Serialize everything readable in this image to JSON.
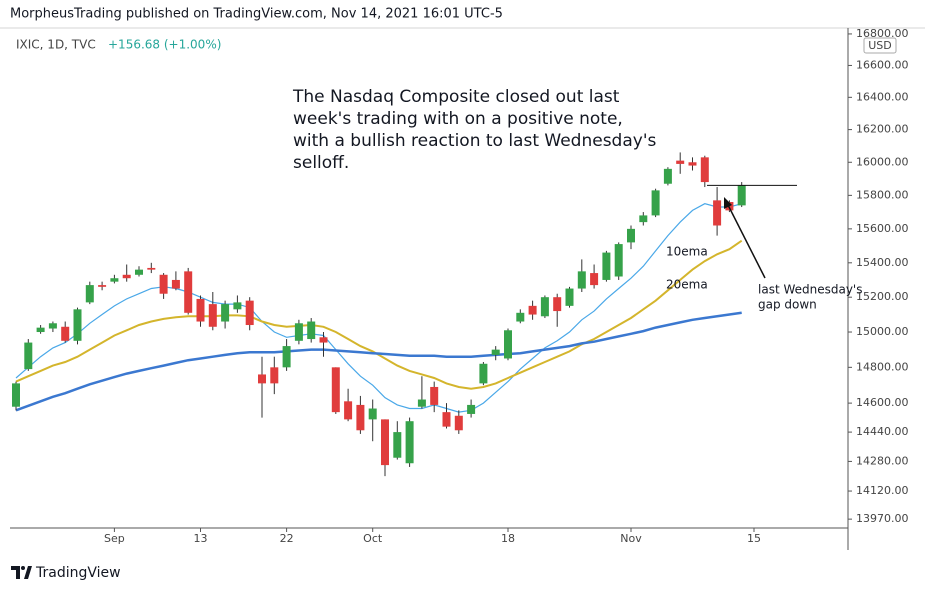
{
  "chart_data": {
    "type": "candlestick",
    "header": "MorpheusTrading published on TradingView.com, Nov 14, 2021 16:01 UTC-5",
    "symbol": "IXIC, 1D, TVC",
    "change": "+156.68 (+1.00%)",
    "currency": "USD",
    "brand": "TradingView",
    "categories": [
      null,
      null,
      null,
      null,
      null,
      null,
      null,
      null,
      "Sep",
      null,
      null,
      null,
      null,
      null,
      null,
      "13",
      null,
      null,
      null,
      null,
      null,
      null,
      "22",
      null,
      null,
      null,
      null,
      null,
      null,
      "Oct",
      null,
      null,
      null,
      null,
      null,
      null,
      null,
      null,
      null,
      null,
      "18",
      null,
      null,
      null,
      null,
      null,
      null,
      null,
      null,
      null,
      "Nov",
      null,
      null,
      null,
      null,
      null,
      null,
      null,
      null,
      null,
      "15"
    ],
    "open": [
      14580,
      14790,
      15000,
      15020,
      15030,
      14950,
      15170,
      15270,
      15290,
      15330,
      15330,
      15370,
      15330,
      15300,
      15350,
      15190,
      15160,
      15060,
      15130,
      15180,
      14760,
      14800,
      14800,
      14950,
      14960,
      14970,
      14800,
      14610,
      14590,
      14510,
      14510,
      14300,
      14270,
      14580,
      14690,
      14550,
      14530,
      14540,
      14710,
      14870,
      14850,
      15060,
      15150,
      15090,
      15200,
      15150,
      15250,
      15340,
      15300,
      15320,
      15520,
      15640,
      15680,
      15870,
      16010,
      16000,
      16030,
      15770,
      15760,
      15740,
      null
    ],
    "high": [
      14720,
      14960,
      15040,
      15060,
      15060,
      15140,
      15290,
      15290,
      15330,
      15390,
      15380,
      15400,
      15340,
      15350,
      15370,
      15210,
      15230,
      15180,
      15210,
      15200,
      14860,
      14860,
      14960,
      15070,
      15080,
      15000,
      14800,
      14680,
      14640,
      14620,
      14510,
      14500,
      14520,
      14750,
      14720,
      14600,
      14560,
      14620,
      14830,
      14920,
      15020,
      15130,
      15180,
      15210,
      15220,
      15260,
      15420,
      15390,
      15470,
      15520,
      15620,
      15700,
      15840,
      15970,
      16060,
      16030,
      16040,
      15850,
      15770,
      15880,
      null
    ],
    "low": [
      14560,
      14780,
      14990,
      15000,
      14940,
      14930,
      15160,
      15240,
      15280,
      15290,
      15320,
      15340,
      15190,
      15240,
      15100,
      15030,
      15010,
      15020,
      15110,
      15010,
      14520,
      14650,
      14780,
      14930,
      14940,
      14860,
      14540,
      14500,
      14430,
      14390,
      14200,
      14290,
      14250,
      14570,
      14550,
      14460,
      14430,
      14520,
      14700,
      14840,
      14840,
      15050,
      15070,
      15080,
      15030,
      15140,
      15230,
      15250,
      15290,
      15300,
      15480,
      15620,
      15670,
      15860,
      15930,
      15950,
      15850,
      15560,
      15700,
      15730,
      null
    ],
    "close": [
      14710,
      14940,
      15025,
      15050,
      14950,
      15130,
      15270,
      15260,
      15310,
      15310,
      15360,
      15360,
      15220,
      15250,
      15110,
      15060,
      15030,
      15160,
      15170,
      15040,
      14710,
      14710,
      14920,
      15050,
      15060,
      14940,
      14550,
      14510,
      14450,
      14570,
      14260,
      14440,
      14500,
      14620,
      14590,
      14470,
      14450,
      14590,
      14820,
      14900,
      15010,
      15110,
      15100,
      15200,
      15120,
      15250,
      15350,
      15270,
      15460,
      15510,
      15600,
      15680,
      15830,
      15960,
      15990,
      15980,
      15880,
      15620,
      15710,
      15860,
      null
    ],
    "up_color": "#36a24a",
    "down_color": "#e03c3c",
    "series": [
      {
        "name": "10ema",
        "color": "#4aa8e8",
        "values": [
          14740,
          14800,
          14860,
          14910,
          14940,
          14990,
          15050,
          15100,
          15150,
          15190,
          15220,
          15250,
          15260,
          15250,
          15230,
          15200,
          15170,
          15160,
          15160,
          15140,
          15060,
          15000,
          14970,
          14980,
          14990,
          14980,
          14900,
          14820,
          14750,
          14700,
          14630,
          14590,
          14570,
          14570,
          14590,
          14570,
          14550,
          14560,
          14600,
          14660,
          14720,
          14790,
          14850,
          14910,
          14950,
          15000,
          15070,
          15120,
          15190,
          15250,
          15310,
          15380,
          15470,
          15560,
          15640,
          15710,
          15750,
          15730,
          15730,
          15750,
          null
        ]
      },
      {
        "name": "20ema",
        "color": "#d4b52c",
        "values": [
          14720,
          14750,
          14780,
          14810,
          14830,
          14860,
          14900,
          14940,
          14980,
          15010,
          15040,
          15060,
          15075,
          15085,
          15090,
          15090,
          15090,
          15095,
          15095,
          15090,
          15060,
          15040,
          15030,
          15035,
          15040,
          15030,
          15000,
          14960,
          14920,
          14890,
          14850,
          14810,
          14780,
          14760,
          14740,
          14710,
          14690,
          14680,
          14690,
          14710,
          14740,
          14770,
          14800,
          14830,
          14860,
          14890,
          14930,
          14960,
          15000,
          15040,
          15080,
          15130,
          15180,
          15240,
          15300,
          15360,
          15410,
          15450,
          15480,
          15530,
          null
        ]
      },
      {
        "color": "#3b78d0",
        "values": [
          14560,
          14585,
          14610,
          14635,
          14655,
          14680,
          14705,
          14725,
          14745,
          14765,
          14780,
          14795,
          14810,
          14825,
          14840,
          14850,
          14860,
          14870,
          14880,
          14885,
          14885,
          14885,
          14890,
          14895,
          14900,
          14900,
          14895,
          14890,
          14885,
          14880,
          14875,
          14870,
          14865,
          14865,
          14865,
          14860,
          14860,
          14860,
          14865,
          14870,
          14875,
          14880,
          14890,
          14900,
          14910,
          14920,
          14935,
          14945,
          14960,
          14975,
          14990,
          15005,
          15025,
          15040,
          15055,
          15070,
          15080,
          15090,
          15100,
          15110,
          null
        ]
      }
    ],
    "log": true,
    "ylim": [
      13923,
      16838
    ],
    "yticks": [
      {
        "value": 16800,
        "label": "16800.00"
      },
      {
        "value": 16600,
        "label": "16600.00"
      },
      {
        "value": 16400,
        "label": "16400.00"
      },
      {
        "value": 16200,
        "label": "16200.00"
      },
      {
        "value": 16000,
        "label": "16000.00"
      },
      {
        "value": 15800,
        "label": "15800.00"
      },
      {
        "value": 15600,
        "label": "15600.00"
      },
      {
        "value": 15400,
        "label": "15400.00"
      },
      {
        "value": 15200,
        "label": "15200.00"
      },
      {
        "value": 15000,
        "label": "15000.00"
      },
      {
        "value": 14800,
        "label": "14800.00"
      },
      {
        "value": 14600,
        "label": "14600.00"
      },
      {
        "value": 14440,
        "label": "14440.00"
      },
      {
        "value": 14280,
        "label": "14280.00"
      },
      {
        "value": 14120,
        "label": "14120.00"
      },
      {
        "value": 13970,
        "label": "13970.00"
      }
    ],
    "level": 15860,
    "note": [
      "The Nasdaq Composite closed out last",
      "week's trading with on a positive note,",
      "with a bullish reaction to last Wednesday's",
      "selloff."
    ],
    "gap_label": [
      "last Wednesday's",
      "gap down"
    ]
  }
}
